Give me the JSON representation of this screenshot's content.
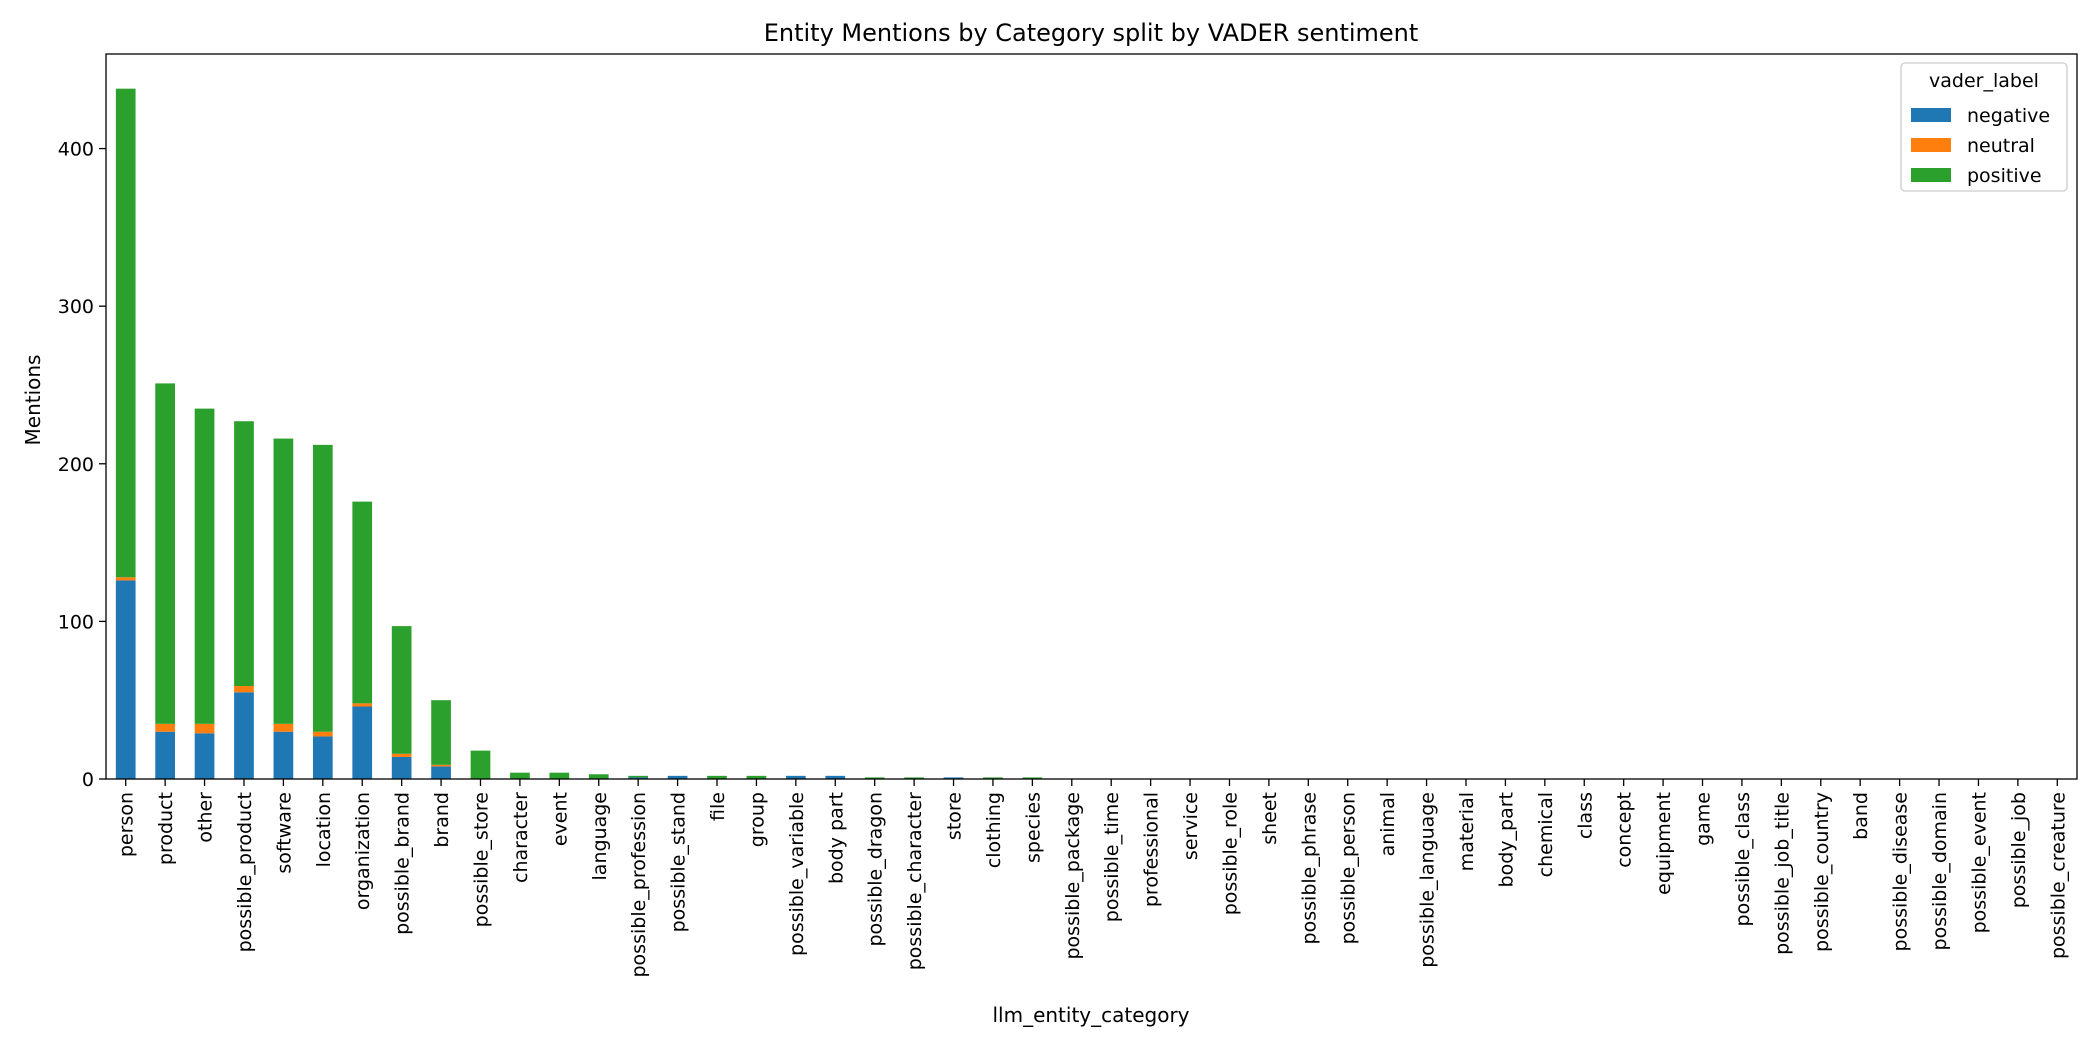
{
  "chart_data": {
    "type": "bar",
    "stacked": true,
    "title": "Entity Mentions by Category split by VADER sentiment",
    "xlabel": "llm_entity_category",
    "ylabel": "Mentions",
    "ylim": [
      0,
      460
    ],
    "yticks": [
      0,
      100,
      200,
      300,
      400
    ],
    "grid": false,
    "legend": {
      "title": "vader_label",
      "placement": "top-right"
    },
    "categories": [
      "person",
      "product",
      "other",
      "possible_product",
      "software",
      "location",
      "organization",
      "possible_brand",
      "brand",
      "possible_store",
      "character",
      "event",
      "language",
      "possible_profession",
      "possible_stand",
      "file",
      "group",
      "possible_variable",
      "body part",
      "possible_dragon",
      "possible_character",
      "store",
      "clothing",
      "species",
      "possible_package",
      "possible_time",
      "professional",
      "service",
      "possible_role",
      "sheet",
      "possible_phrase",
      "possible_person",
      "animal",
      "possible_language",
      "material",
      "body_part",
      "chemical",
      "class",
      "concept",
      "equipment",
      "game",
      "possible_class",
      "possible_job_title",
      "possible_country",
      "band",
      "possible_disease",
      "possible_domain",
      "possible_event",
      "possible_job",
      "possible_creature"
    ],
    "series": [
      {
        "name": "negative",
        "color": "#1f77b4",
        "values": [
          126,
          30,
          29,
          55,
          30,
          27,
          46,
          14,
          8,
          0,
          0,
          0,
          0,
          1,
          2,
          0,
          0,
          2,
          2,
          0,
          0,
          1,
          0,
          0,
          0,
          0,
          0,
          0,
          0,
          0,
          0,
          0,
          0,
          0,
          0,
          0,
          0,
          0,
          0,
          0,
          0,
          0,
          0,
          0,
          0,
          0,
          0,
          0,
          0,
          0
        ]
      },
      {
        "name": "neutral",
        "color": "#ff7f0e",
        "values": [
          2,
          5,
          6,
          4,
          5,
          3,
          2,
          2,
          1,
          0,
          0,
          0,
          0,
          0,
          0,
          0,
          0,
          0,
          0,
          0,
          0,
          0,
          0,
          0,
          0,
          0,
          0,
          0,
          0,
          0,
          0,
          0,
          0,
          0,
          0,
          0,
          0,
          0,
          0,
          0,
          0,
          0,
          0,
          0,
          0,
          0,
          0,
          0,
          0,
          0
        ]
      },
      {
        "name": "positive",
        "color": "#2ca02c",
        "values": [
          310,
          216,
          200,
          168,
          181,
          182,
          128,
          81,
          41,
          18,
          4,
          4,
          3,
          1,
          0,
          2,
          2,
          0,
          0,
          1,
          1,
          0,
          1,
          1,
          0,
          0,
          0,
          0,
          0,
          0,
          0,
          0,
          0,
          0,
          0,
          0,
          0,
          0,
          0,
          0,
          0,
          0,
          0,
          0,
          0,
          0,
          0,
          0,
          0,
          0
        ]
      }
    ]
  }
}
